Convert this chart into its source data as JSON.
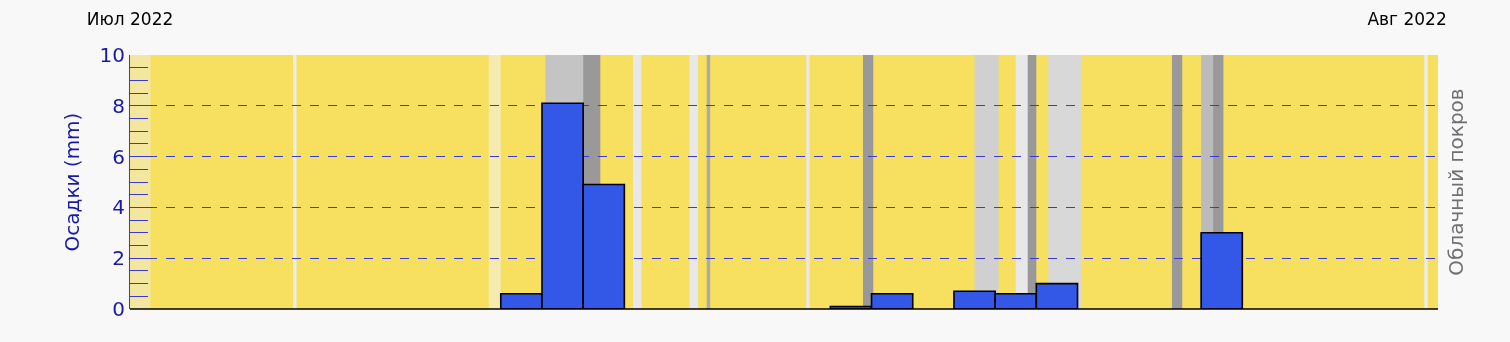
{
  "chart_data": {
    "type": "bar",
    "ylabel": "Осадки (mm)",
    "y2label": "Облачный покров",
    "x": [
      "2022-07-10T12:00",
      "2022-07-11T12:00",
      "2022-07-12T12:00",
      "2022-07-18T12:00",
      "2022-07-19T12:00",
      "2022-07-21T12:00",
      "2022-07-22T12:00",
      "2022-07-23T12:00",
      "2022-07-27T12:00"
    ],
    "values": [
      0.6,
      8.1,
      4.9,
      0.1,
      0.6,
      0.7,
      0.6,
      1.0,
      3.0
    ],
    "color": "#3358e8",
    "xlim": [
      "2022-07-01T00:00",
      "2022-08-01T18:00"
    ],
    "xticks": [
      {
        "value": "2022-07-01",
        "label": "Июл 2022"
      },
      {
        "value": "2022-08-01",
        "label": "Авг 2022"
      }
    ],
    "ylim": [
      0,
      10
    ],
    "yticks": [
      0,
      2,
      4,
      6,
      8,
      10
    ],
    "grid": "y",
    "line_style": "dashed",
    "bands": [
      {
        "axis": "x",
        "from": "2022-07-01T00:00",
        "to": "2022-08-01T18:00",
        "color": "#f7df5f"
      },
      {
        "axis": "x",
        "from": "2022-07-01T00:00",
        "to": "2022-07-01T12:00",
        "color": "#f3e7a0"
      },
      {
        "axis": "x",
        "from": "2022-07-04T23:00",
        "to": "2022-07-05T01:00",
        "color": "#ececec"
      },
      {
        "axis": "x",
        "from": "2022-07-09T17:00",
        "to": "2022-07-10T00:00",
        "color": "#f5eab0"
      },
      {
        "axis": "x",
        "from": "2022-07-11T02:00",
        "to": "2022-07-12T00:00",
        "color": "#c4c4c4"
      },
      {
        "axis": "x",
        "from": "2022-07-12T00:00",
        "to": "2022-07-12T10:00",
        "color": "#999999"
      },
      {
        "axis": "x",
        "from": "2022-07-13T05:00",
        "to": "2022-07-13T10:00",
        "color": "#e8e8e8"
      },
      {
        "axis": "x",
        "from": "2022-07-14T14:00",
        "to": "2022-07-14T19:00",
        "color": "#e8e8e8"
      },
      {
        "axis": "x",
        "from": "2022-07-15T00:00",
        "to": "2022-07-15T02:00",
        "color": "#aaaaaa"
      },
      {
        "axis": "x",
        "from": "2022-07-17T10:00",
        "to": "2022-07-17T12:00",
        "color": "#e8e8e8"
      },
      {
        "axis": "x",
        "from": "2022-07-18T19:00",
        "to": "2022-07-19T01:00",
        "color": "#999999"
      },
      {
        "axis": "x",
        "from": "2022-07-21T12:00",
        "to": "2022-07-22T02:00",
        "color": "#d0d0d0"
      },
      {
        "axis": "x",
        "from": "2022-07-22T12:00",
        "to": "2022-07-22T19:00",
        "color": "#e8e8e8"
      },
      {
        "axis": "x",
        "from": "2022-07-22T19:00",
        "to": "2022-07-23T00:00",
        "color": "#999999"
      },
      {
        "axis": "x",
        "from": "2022-07-23T07:00",
        "to": "2022-07-24T02:00",
        "color": "#d8d8d8"
      },
      {
        "axis": "x",
        "from": "2022-07-26T07:00",
        "to": "2022-07-26T13:00",
        "color": "#999999"
      },
      {
        "axis": "x",
        "from": "2022-07-27T00:00",
        "to": "2022-07-27T07:00",
        "color": "#bbbbbb"
      },
      {
        "axis": "x",
        "from": "2022-07-27T07:00",
        "to": "2022-07-27T13:00",
        "color": "#999999"
      },
      {
        "axis": "x",
        "from": "2022-08-01T10:00",
        "to": "2022-08-01T12:00",
        "color": "#ececec"
      }
    ]
  }
}
